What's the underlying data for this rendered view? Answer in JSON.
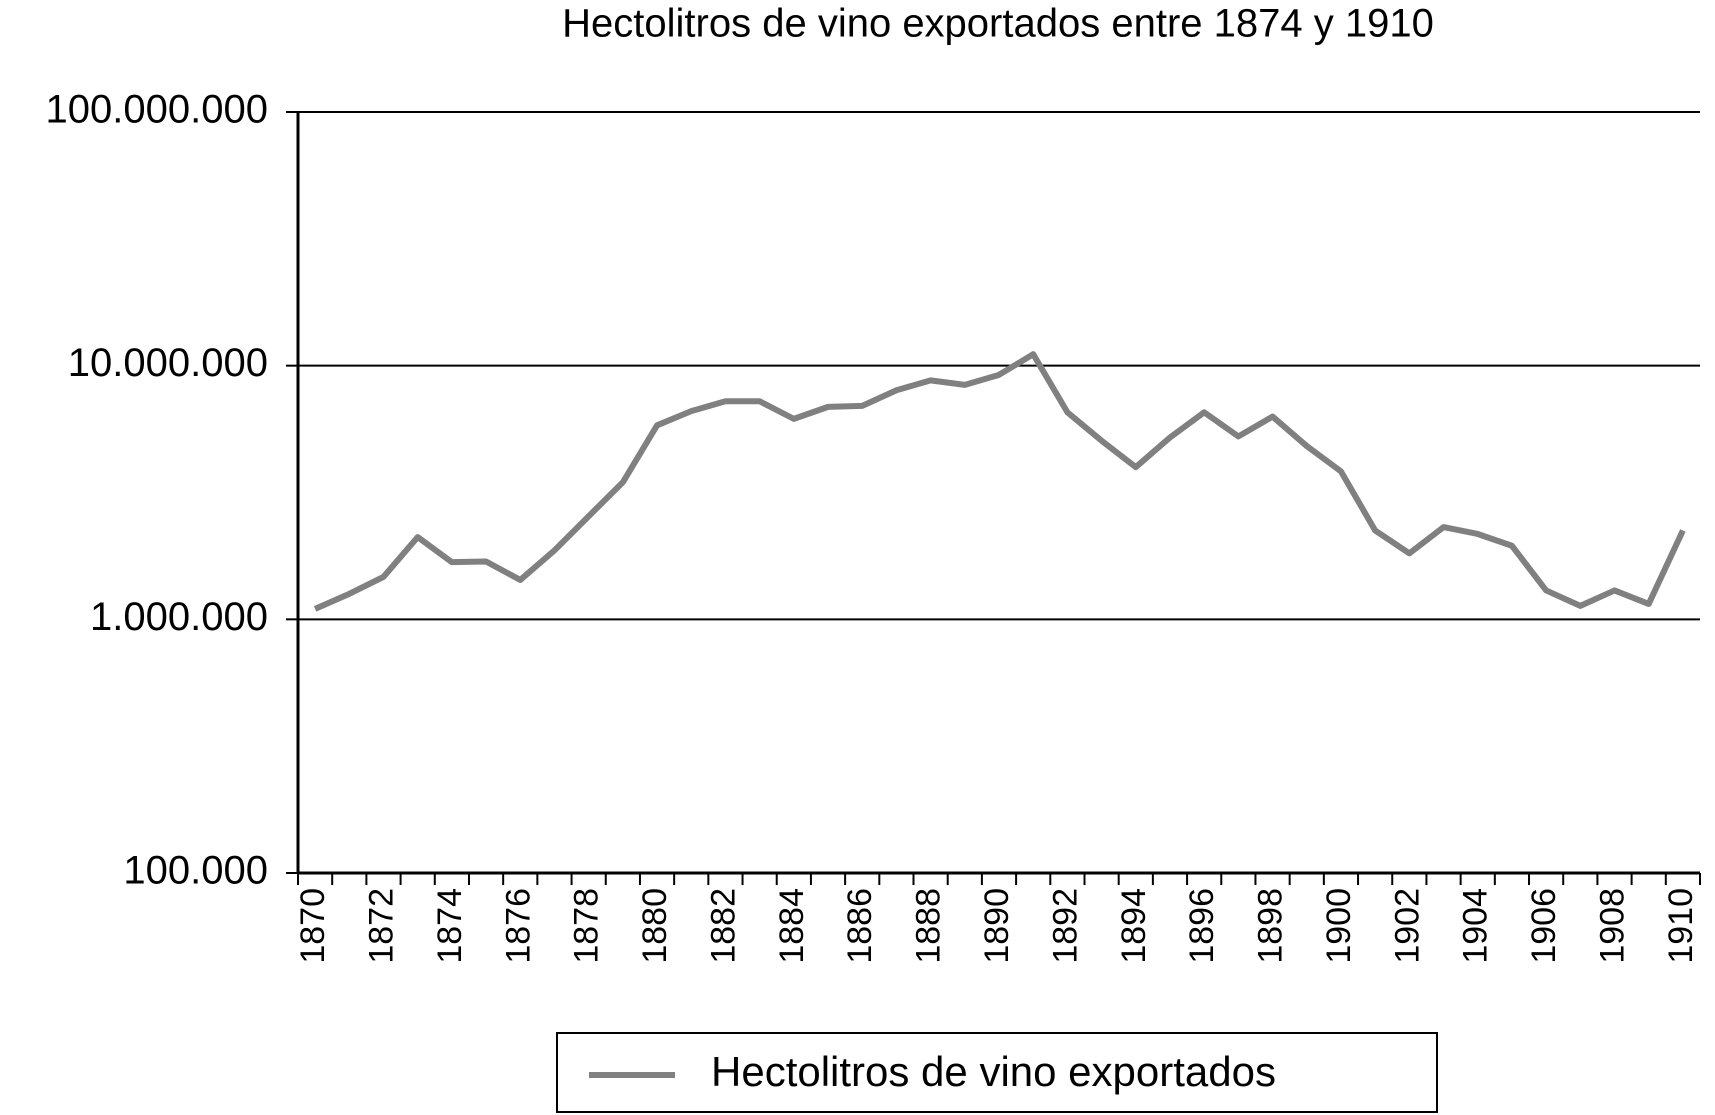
{
  "chart_data": {
    "type": "line",
    "title": "Hectolitros de vino exportados entre 1874 y 1910",
    "categories": [
      "1870",
      null,
      "1872",
      null,
      "1874",
      null,
      "1876",
      null,
      "1878",
      null,
      "1880",
      null,
      "1882",
      null,
      "1884",
      null,
      "1886",
      null,
      "1888",
      null,
      "1890",
      null,
      "1892",
      null,
      "1894",
      null,
      "1896",
      null,
      "1898",
      null,
      "1900",
      null,
      "1902",
      null,
      "1904",
      null,
      "1906",
      null,
      "1908",
      null,
      "1910"
    ],
    "series": [
      {
        "name": "Hectolitros de vino exportados",
        "color": "#808080",
        "values": [
          1100000,
          1260000,
          1470000,
          2110000,
          1680000,
          1690000,
          1430000,
          1870000,
          2550000,
          3470000,
          5820000,
          6620000,
          7240000,
          7240000,
          6170000,
          6880000,
          6940000,
          8000000,
          8750000,
          8400000,
          9200000,
          11100000,
          6550000,
          5060000,
          3980000,
          5210000,
          6550000,
          5260000,
          6300000,
          4820000,
          3830000,
          2240000,
          1820000,
          2310000,
          2170000,
          1950000,
          1300000,
          1130000,
          1300000,
          1150000,
          2240000
        ]
      }
    ],
    "ylim": [
      100000,
      100000000
    ],
    "log_y": true,
    "yticks": [
      {
        "value": 100000,
        "label": "100.000"
      },
      {
        "value": 1000000,
        "label": "1.000.000"
      },
      {
        "value": 10000000,
        "label": "10.000.000"
      },
      {
        "value": 100000000,
        "label": "100.000.000"
      }
    ],
    "grid": true,
    "legend": "bottom"
  }
}
